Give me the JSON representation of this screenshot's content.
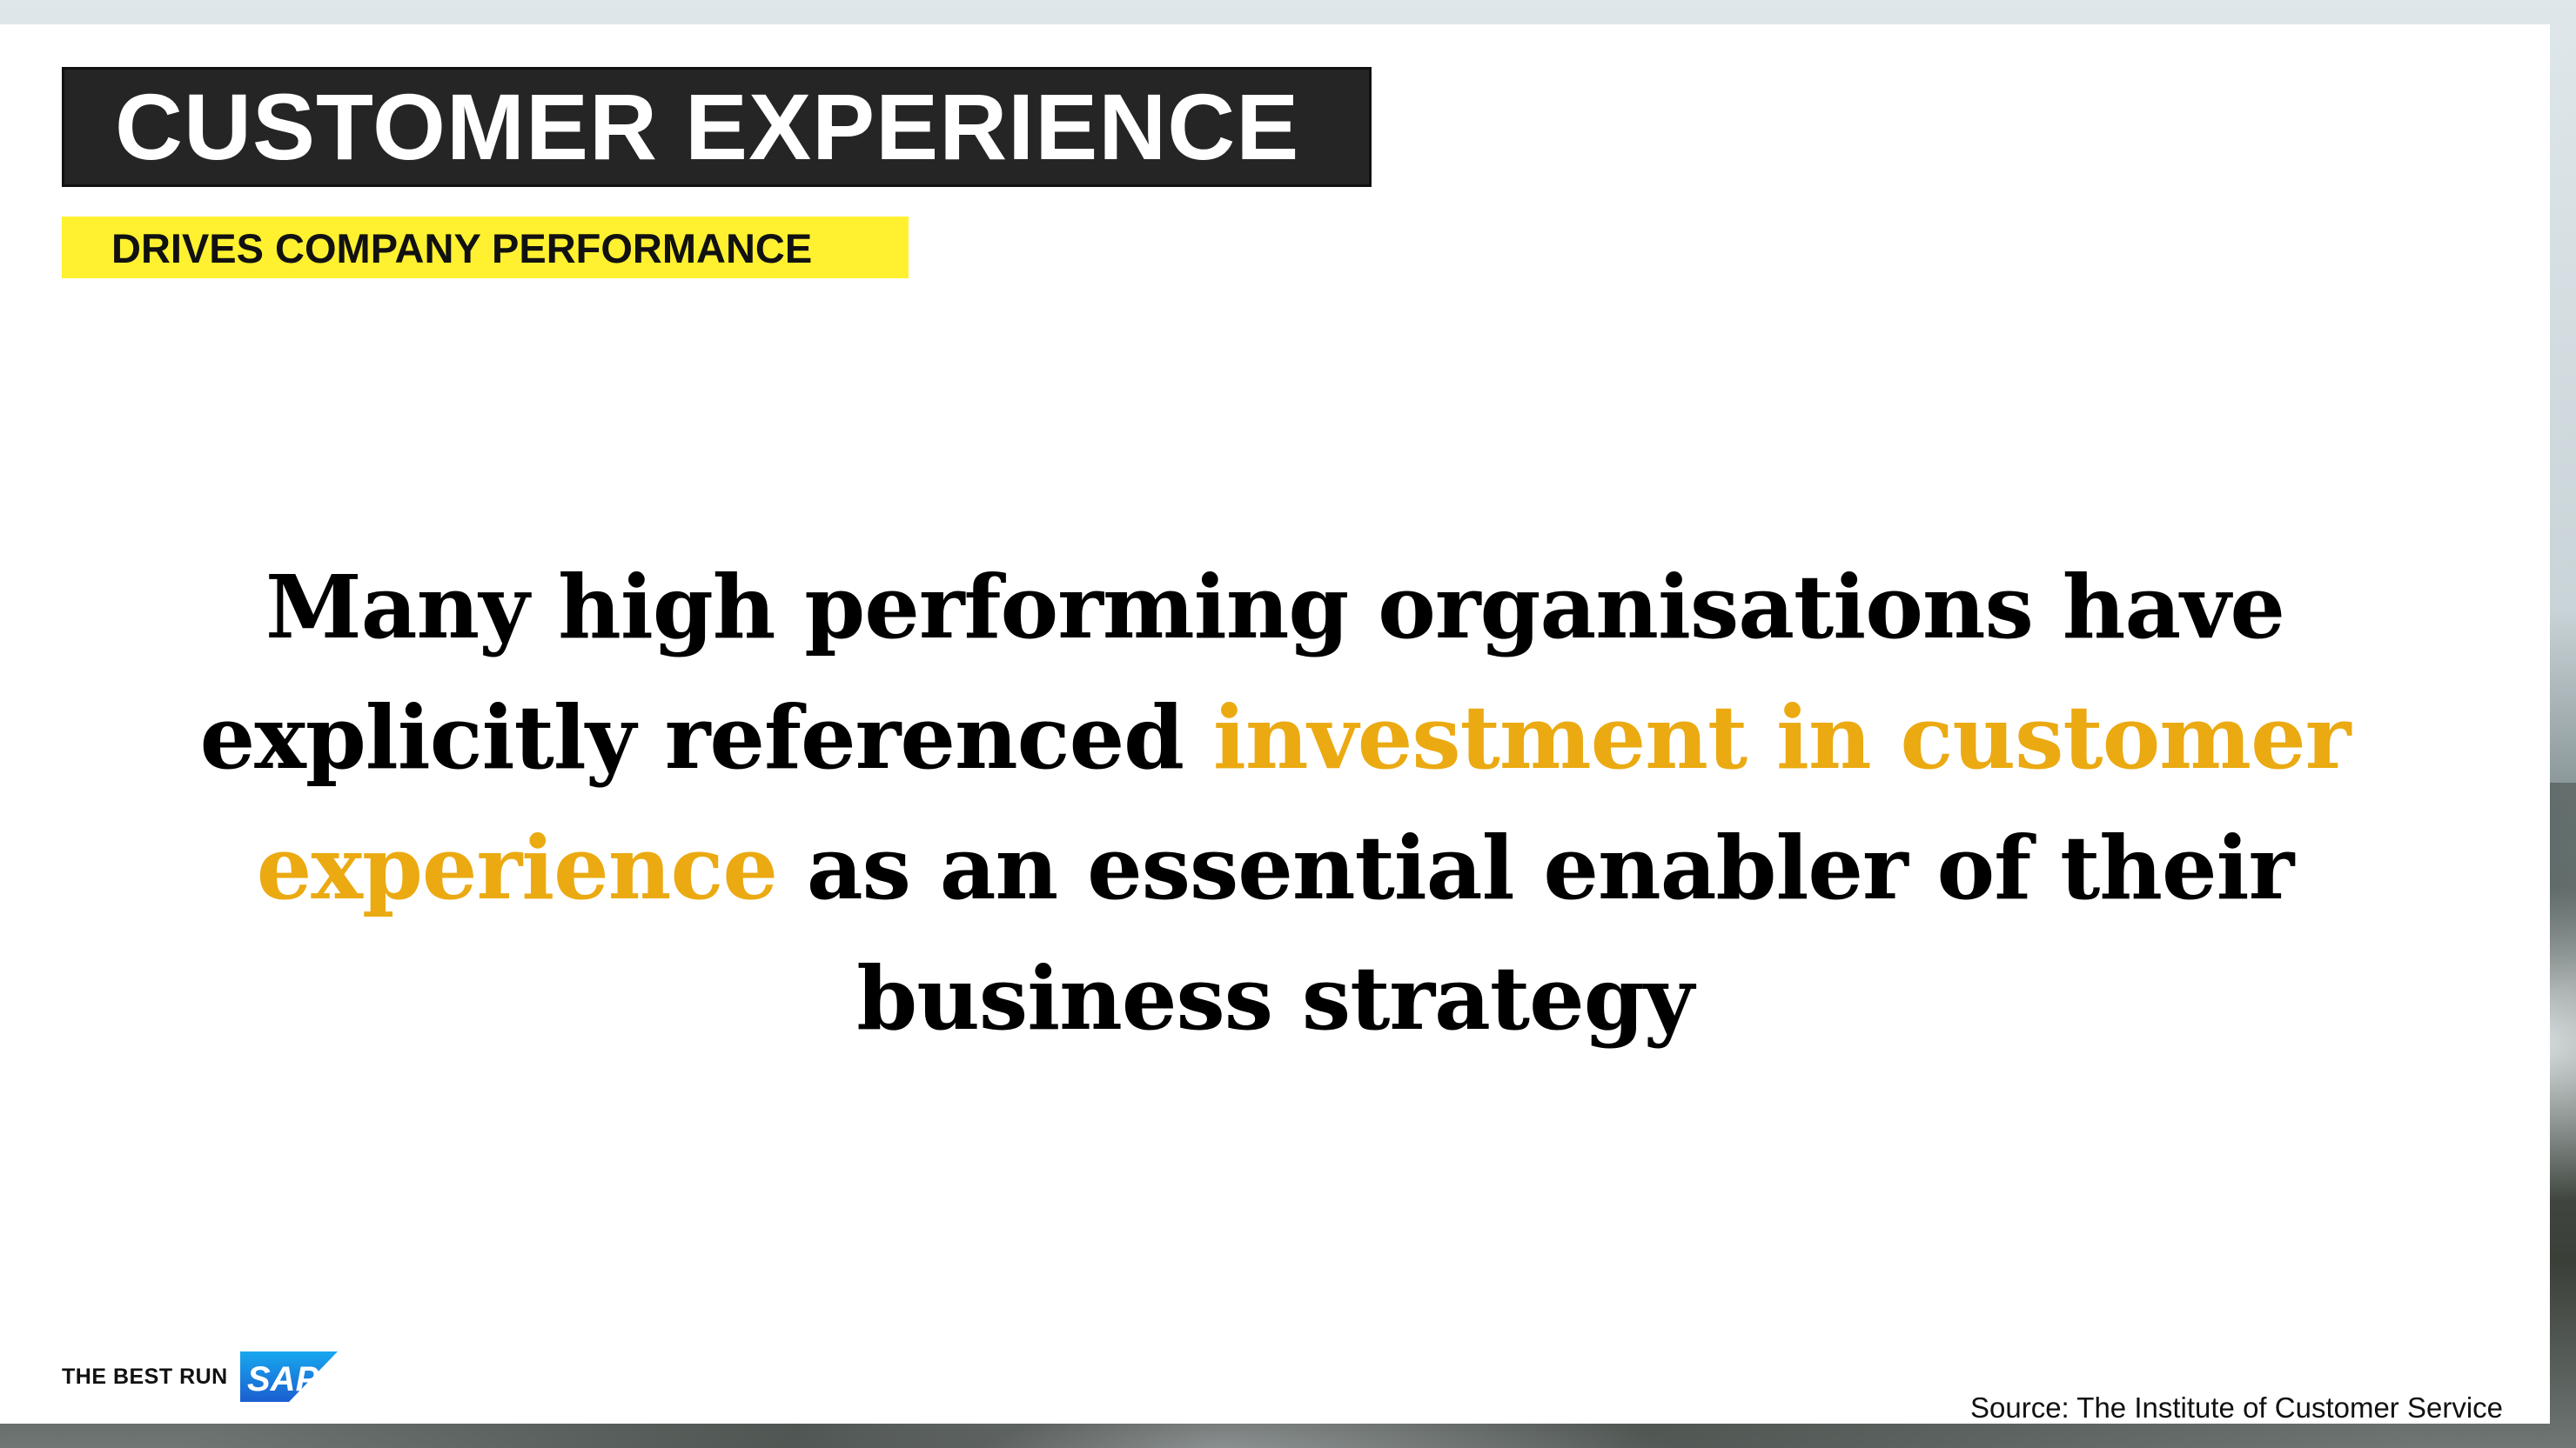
{
  "slide": {
    "title": "CUSTOMER EXPERIENCE",
    "subtitle": "DRIVES COMPANY PERFORMANCE",
    "quote": {
      "part1": "Many high performing organisations have explicitly referenced ",
      "highlight": "investment in customer experience",
      "part2": " as an essential enabler of their business strategy"
    },
    "source": "Source: The Institute of Customer Service"
  },
  "brand": {
    "tagline": "THE BEST RUN",
    "logo_text": "SAP"
  },
  "colors": {
    "title_bg": "#252525",
    "subtitle_bg": "#fff12f",
    "highlight": "#ebaa12",
    "sap_blue": "#1a73d8"
  }
}
